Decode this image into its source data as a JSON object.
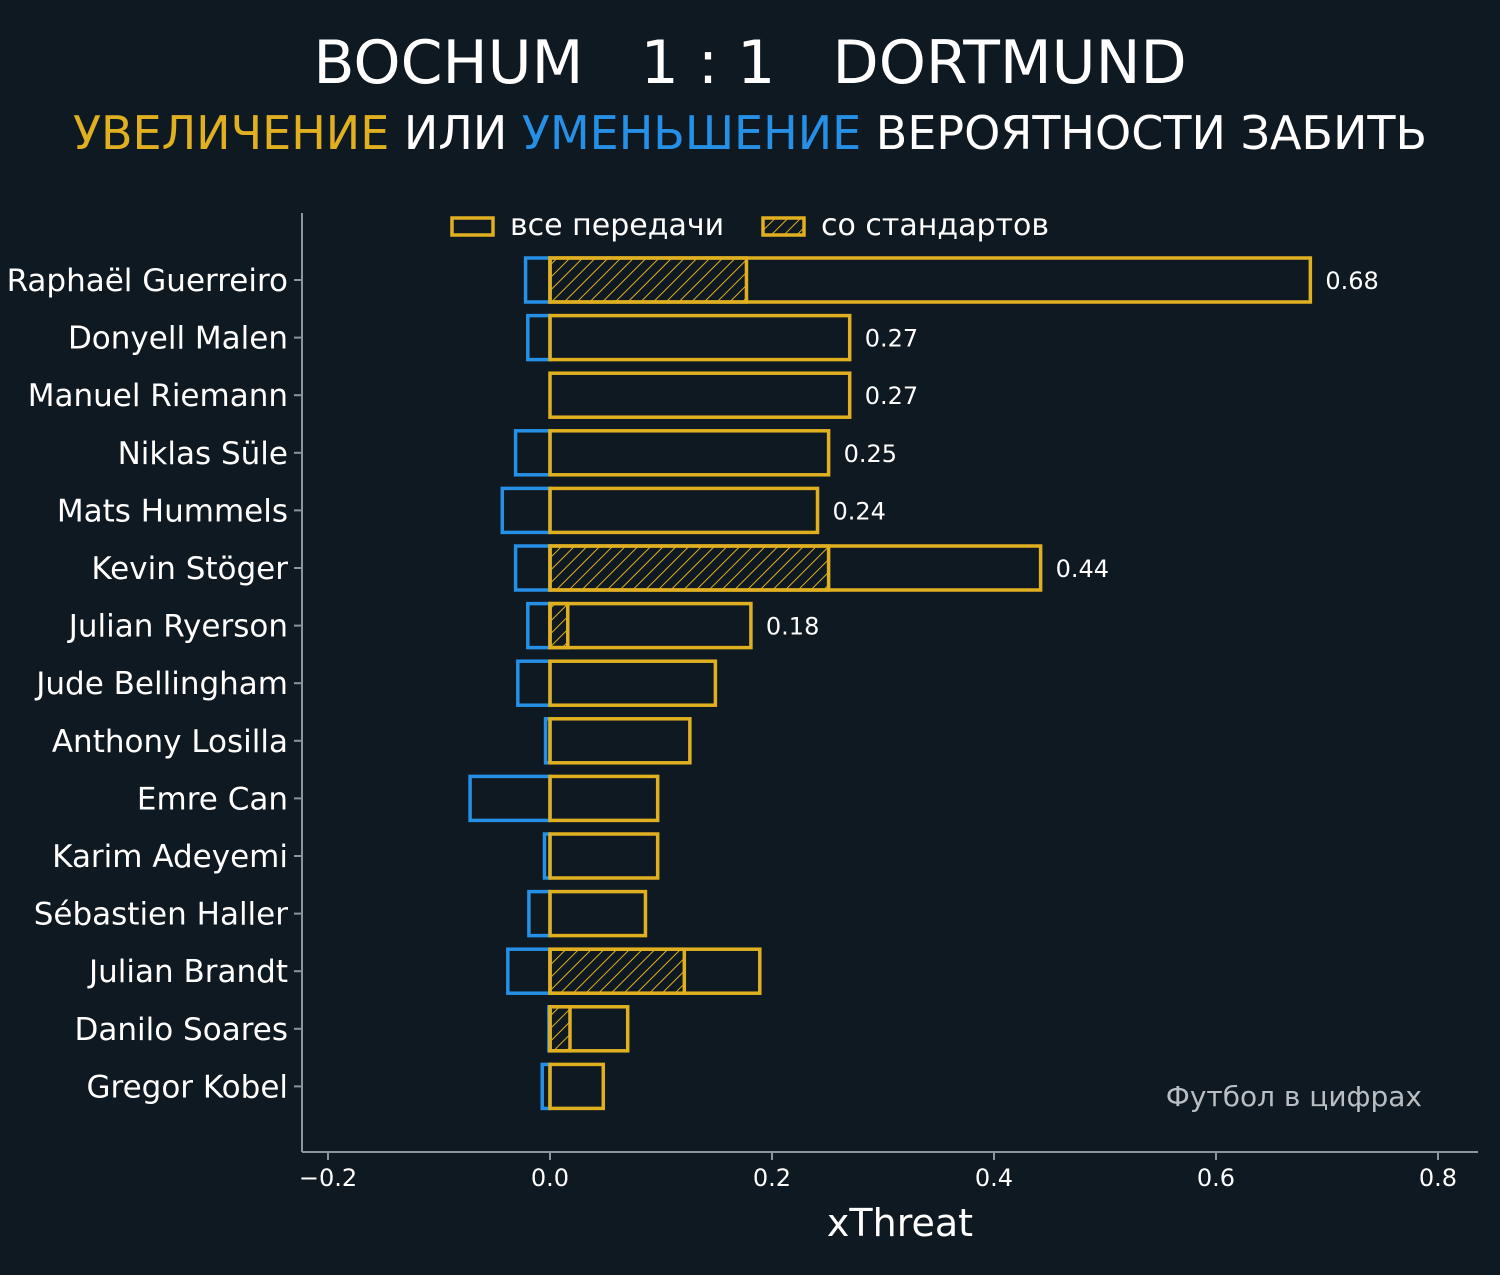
{
  "header": {
    "title": "BOCHUM   1 : 1   DORTMUND",
    "subtitle_parts": [
      {
        "text": "УВЕЛИЧЕНИЕ",
        "color": "#e0b021"
      },
      {
        "text": " ИЛИ ",
        "color": "#ffffff"
      },
      {
        "text": "УМЕНЬШЕНИЕ",
        "color": "#2590e6"
      },
      {
        "text": " ВЕРОЯТНОСТИ ЗАБИТЬ",
        "color": "#ffffff"
      }
    ]
  },
  "watermark": "Футбол в цифрах",
  "colors": {
    "background": "#0f1921",
    "increase": "#e0b021",
    "decrease": "#2590e6",
    "axis": "#8c959c",
    "text": "#ffffff"
  },
  "chart_data": {
    "type": "bar",
    "orientation": "horizontal",
    "xlabel": "xThreat",
    "xlim": [
      -0.22,
      0.82
    ],
    "xticks": [
      -0.2,
      0.0,
      0.2,
      0.4,
      0.6,
      0.8
    ],
    "xtick_labels": [
      "−0.2",
      "0.0",
      "0.2",
      "0.4",
      "0.6",
      "0.8"
    ],
    "legend": {
      "position": "top",
      "entries": [
        {
          "label": "все передачи",
          "style": "outline"
        },
        {
          "label": "со стандартов",
          "style": "hatched"
        }
      ]
    },
    "grid": false,
    "players": [
      {
        "name": "Raphaël Guerreiro",
        "increase": 0.685,
        "decrease": -0.022,
        "set_piece": 0.177,
        "label": "0.68"
      },
      {
        "name": "Donyell Malen",
        "increase": 0.27,
        "decrease": -0.02,
        "set_piece": 0,
        "label": "0.27"
      },
      {
        "name": "Manuel Riemann",
        "increase": 0.27,
        "decrease": 0,
        "set_piece": 0,
        "label": "0.27"
      },
      {
        "name": "Niklas Süle",
        "increase": 0.251,
        "decrease": -0.031,
        "set_piece": 0,
        "label": "0.25"
      },
      {
        "name": "Mats Hummels",
        "increase": 0.241,
        "decrease": -0.043,
        "set_piece": 0,
        "label": "0.24"
      },
      {
        "name": "Kevin Stöger",
        "increase": 0.442,
        "decrease": -0.031,
        "set_piece": 0.251,
        "label": "0.44"
      },
      {
        "name": "Julian Ryerson",
        "increase": 0.181,
        "decrease": -0.02,
        "set_piece": 0.016,
        "label": "0.18"
      },
      {
        "name": "Jude Bellingham",
        "increase": 0.149,
        "decrease": -0.029,
        "set_piece": 0,
        "label": ""
      },
      {
        "name": "Anthony Losilla",
        "increase": 0.126,
        "decrease": -0.004,
        "set_piece": 0,
        "label": ""
      },
      {
        "name": "Emre Can",
        "increase": 0.097,
        "decrease": -0.072,
        "set_piece": 0,
        "label": ""
      },
      {
        "name": "Karim Adeyemi",
        "increase": 0.097,
        "decrease": -0.005,
        "set_piece": 0,
        "label": ""
      },
      {
        "name": "Sébastien Haller",
        "increase": 0.086,
        "decrease": -0.019,
        "set_piece": 0,
        "label": ""
      },
      {
        "name": "Julian Brandt",
        "increase": 0.189,
        "decrease": -0.038,
        "set_piece": 0.121,
        "label": ""
      },
      {
        "name": "Danilo Soares",
        "increase": 0.07,
        "decrease": -0.001,
        "set_piece": 0.018,
        "label": ""
      },
      {
        "name": "Gregor Kobel",
        "increase": 0.048,
        "decrease": -0.007,
        "set_piece": 0,
        "label": ""
      }
    ]
  }
}
